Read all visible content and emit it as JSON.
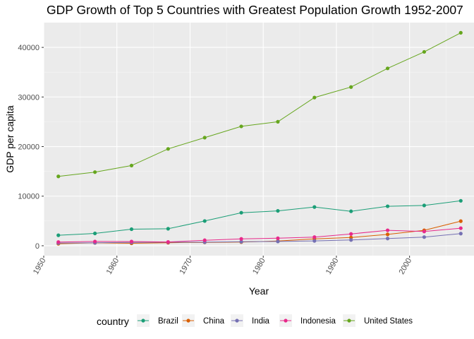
{
  "chart_data": {
    "type": "line",
    "title": "GDP Growth of Top 5 Countries with Greatest Population Growth 1952-2007",
    "xlabel": "Year",
    "ylabel": "GDP per capita",
    "x": [
      1952,
      1957,
      1962,
      1967,
      1972,
      1977,
      1982,
      1987,
      1992,
      1997,
      2002,
      2007
    ],
    "xlim": [
      1950,
      2009
    ],
    "ylim": [
      -2000,
      45000
    ],
    "x_ticks": [
      "1950",
      "1960",
      "1970",
      "1980",
      "1990",
      "2000"
    ],
    "x_tick_values": [
      1950,
      1960,
      1970,
      1980,
      1990,
      2000
    ],
    "y_ticks": [
      "0",
      "10000",
      "20000",
      "30000",
      "40000"
    ],
    "y_tick_values": [
      0,
      10000,
      20000,
      30000,
      40000
    ],
    "grid": true,
    "legend_position": "bottom",
    "legend_title": "country",
    "series": [
      {
        "name": "Brazil",
        "color": "#1b9e77",
        "values": [
          2109,
          2487,
          3337,
          3430,
          4986,
          6660,
          7031,
          7807,
          6950,
          7958,
          8131,
          9066
        ]
      },
      {
        "name": "China",
        "color": "#d95f02",
        "values": [
          400,
          576,
          488,
          613,
          677,
          741,
          962,
          1379,
          1656,
          2289,
          3119,
          4959
        ]
      },
      {
        "name": "India",
        "color": "#7570b3",
        "values": [
          547,
          590,
          658,
          701,
          724,
          813,
          856,
          977,
          1164,
          1459,
          1747,
          2452
        ]
      },
      {
        "name": "Indonesia",
        "color": "#e7298a",
        "values": [
          750,
          859,
          849,
          762,
          1111,
          1383,
          1517,
          1748,
          2383,
          3119,
          2874,
          3541
        ]
      },
      {
        "name": "United States",
        "color": "#66a61e",
        "values": [
          13990,
          14847,
          16173,
          19530,
          21806,
          24073,
          25010,
          29884,
          32004,
          35767,
          39097,
          42952
        ]
      }
    ]
  }
}
